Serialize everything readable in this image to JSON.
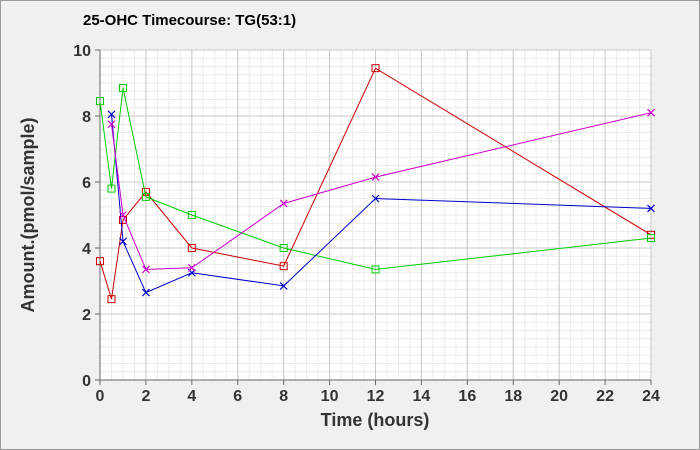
{
  "chart_data": {
    "type": "line",
    "title": "25-OHC Timecourse: TG(53:1)",
    "xlabel": "Time (hours)",
    "ylabel": "Amount.(pmol/sample)",
    "xlim": [
      0,
      24
    ],
    "ylim": [
      0,
      10
    ],
    "xticks": [
      0,
      2,
      4,
      6,
      8,
      10,
      12,
      14,
      16,
      18,
      20,
      22,
      24
    ],
    "yticks": [
      0,
      2,
      4,
      6,
      8,
      10
    ],
    "grid": true,
    "legend": "none",
    "series": [
      {
        "color": "#cc0000",
        "marker": "square",
        "x": [
          0,
          0.5,
          1,
          2,
          4,
          8,
          12,
          24
        ],
        "y": [
          3.6,
          2.45,
          4.85,
          5.7,
          4.0,
          3.45,
          9.45,
          4.4
        ]
      },
      {
        "color": "#00cc00",
        "marker": "square",
        "x": [
          0,
          0.5,
          1,
          2,
          4,
          8,
          12,
          24
        ],
        "y": [
          8.45,
          5.8,
          8.85,
          5.55,
          5.0,
          4.0,
          3.35,
          4.3
        ]
      },
      {
        "color": "#0000cc",
        "marker": "x",
        "x": [
          0.5,
          1,
          2,
          4,
          8,
          12,
          24
        ],
        "y": [
          8.05,
          4.2,
          2.65,
          3.25,
          2.85,
          5.5,
          5.2
        ]
      },
      {
        "color": "#cc00cc",
        "marker": "x",
        "x": [
          0.5,
          1,
          2,
          4,
          8,
          12,
          24
        ],
        "y": [
          7.75,
          5.0,
          3.35,
          3.4,
          5.35,
          6.15,
          8.1
        ]
      }
    ]
  }
}
